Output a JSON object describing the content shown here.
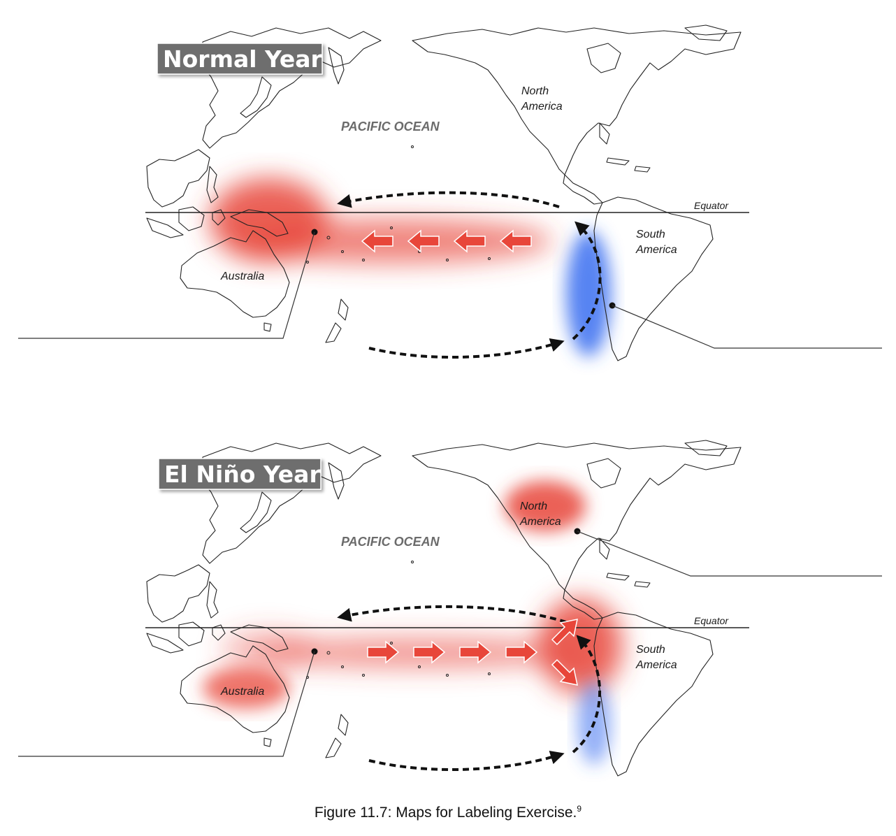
{
  "maps": [
    {
      "title": "Normal Year",
      "ocean_label": "PACIFIC OCEAN",
      "equator_label": "Equator",
      "labels": {
        "north_america": [
          "North",
          "America"
        ],
        "south_america": [
          "South",
          "America"
        ],
        "australia": "Australia"
      }
    },
    {
      "title": "El Niño Year",
      "ocean_label": "PACIFIC OCEAN",
      "equator_label": "Equator",
      "labels": {
        "north_america": [
          "North",
          "America"
        ],
        "south_america": [
          "South",
          "America"
        ],
        "australia": "Australia"
      }
    }
  ],
  "caption": {
    "text": "Figure 11.7: Maps for Labeling Exercise.",
    "footnote": "9"
  },
  "colors": {
    "warm": "#e8463a",
    "cool": "#3a6ff0",
    "banner": "#6e6e6e"
  }
}
